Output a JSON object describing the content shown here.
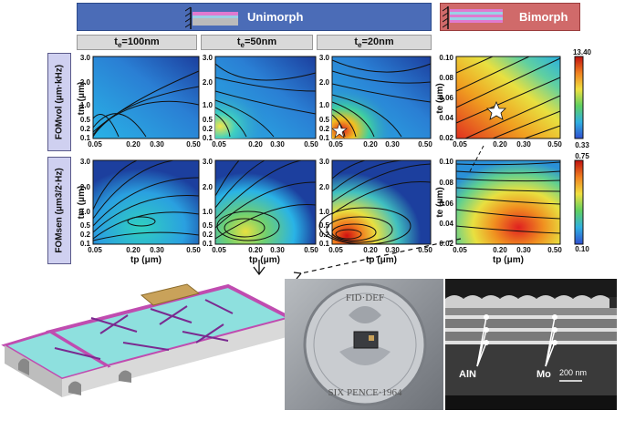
{
  "header": {
    "unimorph_label": "Unimorph",
    "bimorph_label": "Bimorph"
  },
  "columns": [
    {
      "label": "te=100nm",
      "sub": "e",
      "pre": "t",
      "post": "=100nm"
    },
    {
      "label": "te=50nm",
      "sub": "e",
      "pre": "t",
      "post": "=50nm"
    },
    {
      "label": "te=20nm",
      "sub": "e",
      "pre": "t",
      "post": "=20nm"
    }
  ],
  "rows": {
    "fom_vol": "FOMvol (μm·kHz)",
    "fom_sen": "FOMsen (μm3/2·Hz)"
  },
  "axes": {
    "tm_label": "tm (μm)",
    "te_label": "te (μm)",
    "tp_label": "tp (μm)",
    "uni_y_ticks": [
      "3.0",
      "2.0",
      "1.0",
      "0.5",
      "0.2",
      "0.1"
    ],
    "uni_x_ticks": [
      "0.05",
      "0.20",
      "0.30",
      "0.50"
    ],
    "bi_y_ticks": [
      "0.10",
      "0.08",
      "0.06",
      "0.04",
      "0.02"
    ],
    "bi_x_ticks": [
      "0.05",
      "0.20",
      "0.30",
      "0.50"
    ]
  },
  "colorbars": {
    "top_max": "13.40",
    "top_min": "0.33",
    "bottom_max": "0.75",
    "bottom_min": "0.10"
  },
  "sem": {
    "label_aln": "AlN",
    "label_mo": "Mo",
    "scale": "200 nm"
  },
  "coin": {
    "text_top": "FID·DEF",
    "text_bottom": "SIX PENCE·1964"
  }
}
